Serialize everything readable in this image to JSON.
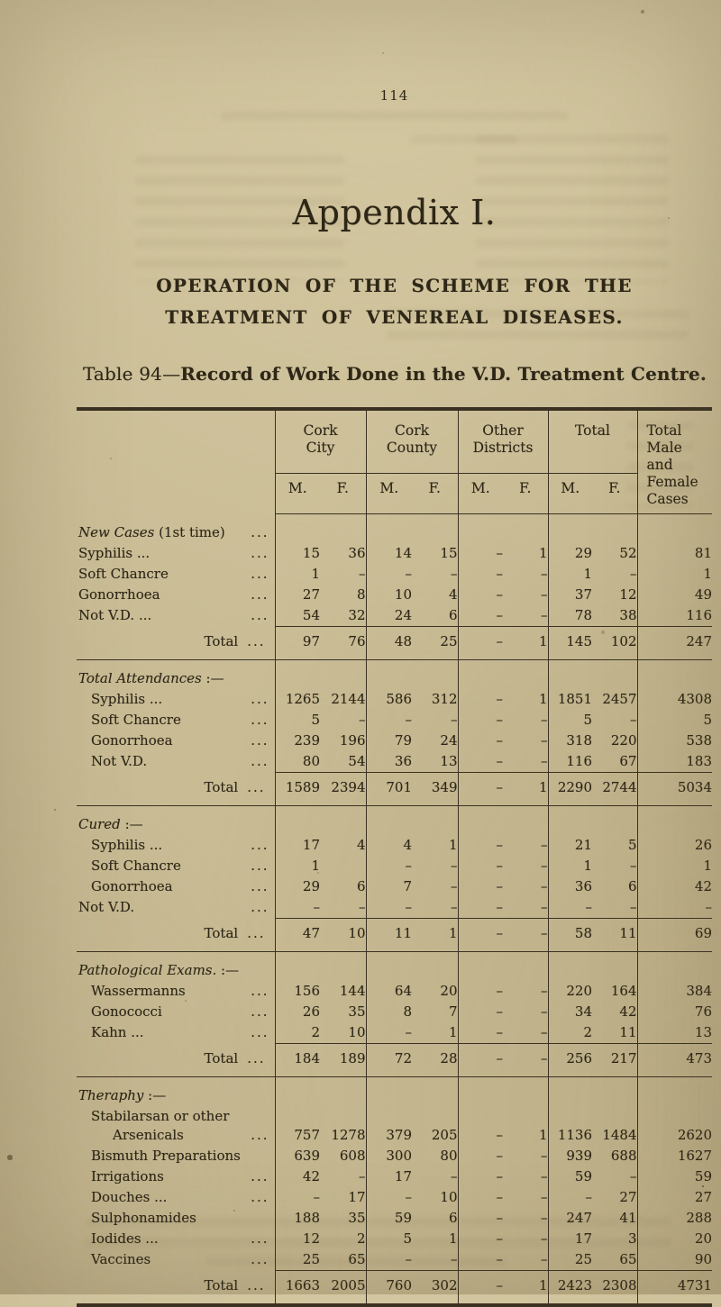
{
  "page": {
    "number": "114",
    "appendix_title": "Appendix I.",
    "title_line1": "OPERATION OF THE SCHEME FOR THE",
    "title_line2": "TREATMENT OF VENEREAL DISEASES.",
    "caption_prefix": "Table 94",
    "caption_dash": "—",
    "caption_main": "Record of Work Done in the V.D. Treatment Centre."
  },
  "table": {
    "column_groups": [
      {
        "label_lines": [
          "Cork",
          "City"
        ],
        "sub": [
          "M.",
          "F."
        ]
      },
      {
        "label_lines": [
          "Cork",
          "County"
        ],
        "sub": [
          "M.",
          "F."
        ]
      },
      {
        "label_lines": [
          "Other",
          "Districts"
        ],
        "sub": [
          "M.",
          "F."
        ]
      },
      {
        "label_lines": [
          "Total"
        ],
        "sub": [
          "M.",
          "F."
        ]
      }
    ],
    "last_column_lines": [
      "Total",
      "Male and",
      "Female",
      "Cases"
    ],
    "sections": [
      {
        "heading": {
          "italic": "New Cases",
          "rest": "(1st time)",
          "dots": true
        },
        "rows": [
          {
            "label": "Syphilis ...",
            "indent": 0,
            "dots": true,
            "values": [
              "15",
              "36",
              "14",
              "15",
              "–",
              "1",
              "29",
              "52"
            ],
            "total": "81"
          },
          {
            "label": "Soft Chancre",
            "indent": 0,
            "dots": true,
            "values": [
              "1",
              "–",
              "–",
              "–",
              "–",
              "–",
              "1",
              "–"
            ],
            "total": "1"
          },
          {
            "label": "Gonorrhoea",
            "indent": 0,
            "dots": true,
            "values": [
              "27",
              "8",
              "10",
              "4",
              "–",
              "–",
              "37",
              "12"
            ],
            "total": "49"
          },
          {
            "label": "Not V.D. ...",
            "indent": 0,
            "dots": true,
            "values": [
              "54",
              "32",
              "24",
              "6",
              "–",
              "–",
              "78",
              "38"
            ],
            "total": "116"
          }
        ],
        "total_row": {
          "label": "Total",
          "dots": "...",
          "values": [
            "97",
            "76",
            "48",
            "25",
            "–",
            "1",
            "145",
            "102"
          ],
          "total": "247"
        }
      },
      {
        "heading": {
          "italic": "Total Attendances",
          "rest": ":—",
          "dots": false
        },
        "rows": [
          {
            "label": "Syphilis ...",
            "indent": 1,
            "dots": true,
            "values": [
              "1265",
              "2144",
              "586",
              "312",
              "–",
              "1",
              "1851",
              "2457"
            ],
            "total": "4308"
          },
          {
            "label": "Soft Chancre",
            "indent": 1,
            "dots": true,
            "values": [
              "5",
              "–",
              "–",
              "–",
              "–",
              "–",
              "5",
              "–"
            ],
            "total": "5"
          },
          {
            "label": "Gonorrhoea",
            "indent": 1,
            "dots": true,
            "values": [
              "239",
              "196",
              "79",
              "24",
              "–",
              "–",
              "318",
              "220"
            ],
            "total": "538"
          },
          {
            "label": "Not V.D.",
            "indent": 1,
            "dots": true,
            "values": [
              "80",
              "54",
              "36",
              "13",
              "–",
              "–",
              "116",
              "67"
            ],
            "total": "183"
          }
        ],
        "total_row": {
          "label": "Total",
          "dots": "...",
          "values": [
            "1589",
            "2394",
            "701",
            "349",
            "–",
            "1",
            "2290",
            "2744"
          ],
          "total": "5034"
        }
      },
      {
        "heading": {
          "italic": "Cured",
          "rest": ":—",
          "dots": false
        },
        "rows": [
          {
            "label": "Syphilis ...",
            "indent": 1,
            "dots": true,
            "values": [
              "17",
              "4",
              "4",
              "1",
              "–",
              "–",
              "21",
              "5"
            ],
            "total": "26"
          },
          {
            "label": "Soft Chancre",
            "indent": 1,
            "dots": true,
            "values": [
              "1",
              "",
              "–",
              "–",
              "–",
              "–",
              "1",
              "–"
            ],
            "total": "1"
          },
          {
            "label": "Gonorrhoea",
            "indent": 1,
            "dots": true,
            "values": [
              "29",
              "6",
              "7",
              "–",
              "–",
              "–",
              "36",
              "6"
            ],
            "total": "42"
          },
          {
            "label": "Not V.D.",
            "indent": 0,
            "dots": true,
            "values": [
              "–",
              "–",
              "–",
              "–",
              "–",
              "–",
              "–",
              "–"
            ],
            "total": "–"
          }
        ],
        "total_row": {
          "label": "Total",
          "dots": "...",
          "values": [
            "47",
            "10",
            "11",
            "1",
            "–",
            "–",
            "58",
            "11"
          ],
          "total": "69"
        }
      },
      {
        "heading": {
          "italic": "Pathological Exams.",
          "rest": ":—",
          "dots": false
        },
        "rows": [
          {
            "label": "Wassermanns",
            "indent": 1,
            "dots": true,
            "values": [
              "156",
              "144",
              "64",
              "20",
              "–",
              "–",
              "220",
              "164"
            ],
            "total": "384"
          },
          {
            "label": "Gonococci",
            "indent": 1,
            "dots": true,
            "values": [
              "26",
              "35",
              "8",
              "7",
              "–",
              "–",
              "34",
              "42"
            ],
            "total": "76"
          },
          {
            "label": "Kahn ...",
            "indent": 1,
            "dots": true,
            "values": [
              "2",
              "10",
              "–",
              "1",
              "–",
              "–",
              "2",
              "11"
            ],
            "total": "13"
          }
        ],
        "total_row": {
          "label": "Total",
          "dots": "...",
          "values": [
            "184",
            "189",
            "72",
            "28",
            "–",
            "–",
            "256",
            "217"
          ],
          "total": "473"
        }
      },
      {
        "heading": {
          "italic": "Theraphy",
          "rest": ":—",
          "dots": false
        },
        "rows": [
          {
            "label_lines": [
              "Stabilarsan or other",
              "Arsenicals"
            ],
            "indent": 1,
            "indent2": 2,
            "dots": true,
            "values": [
              "757",
              "1278",
              "379",
              "205",
              "–",
              "1",
              "1136",
              "1484"
            ],
            "total": "2620"
          },
          {
            "label": "Bismuth Preparations",
            "indent": 1,
            "dots": false,
            "values": [
              "639",
              "608",
              "300",
              "80",
              "–",
              "–",
              "939",
              "688"
            ],
            "total": "1627"
          },
          {
            "label": "Irrigations",
            "indent": 1,
            "dots": true,
            "values": [
              "42",
              "–",
              "17",
              "–",
              "–",
              "–",
              "59",
              "–"
            ],
            "total": "59"
          },
          {
            "label": "Douches ...",
            "indent": 1,
            "dots": true,
            "values": [
              "–",
              "17",
              "–",
              "10",
              "–",
              "–",
              "–",
              "27"
            ],
            "total": "27"
          },
          {
            "label": "Sulphonamides",
            "indent": 1,
            "dots": false,
            "values": [
              "188",
              "35",
              "59",
              "6",
              "–",
              "–",
              "247",
              "41"
            ],
            "total": "288"
          },
          {
            "label": "Iodides ...",
            "indent": 1,
            "dots": true,
            "values": [
              "12",
              "2",
              "5",
              "1",
              "–",
              "–",
              "17",
              "3"
            ],
            "total": "20"
          },
          {
            "label": "Vaccines",
            "indent": 1,
            "dots": true,
            "values": [
              "25",
              "65",
              "–",
              "–",
              "–",
              "–",
              "25",
              "65"
            ],
            "total": "90"
          }
        ],
        "total_row": {
          "label": "Total",
          "dots": "...",
          "values": [
            "1663",
            "2005",
            "760",
            "302",
            "–",
            "1",
            "2423",
            "2308"
          ],
          "total": "4731"
        }
      }
    ]
  }
}
